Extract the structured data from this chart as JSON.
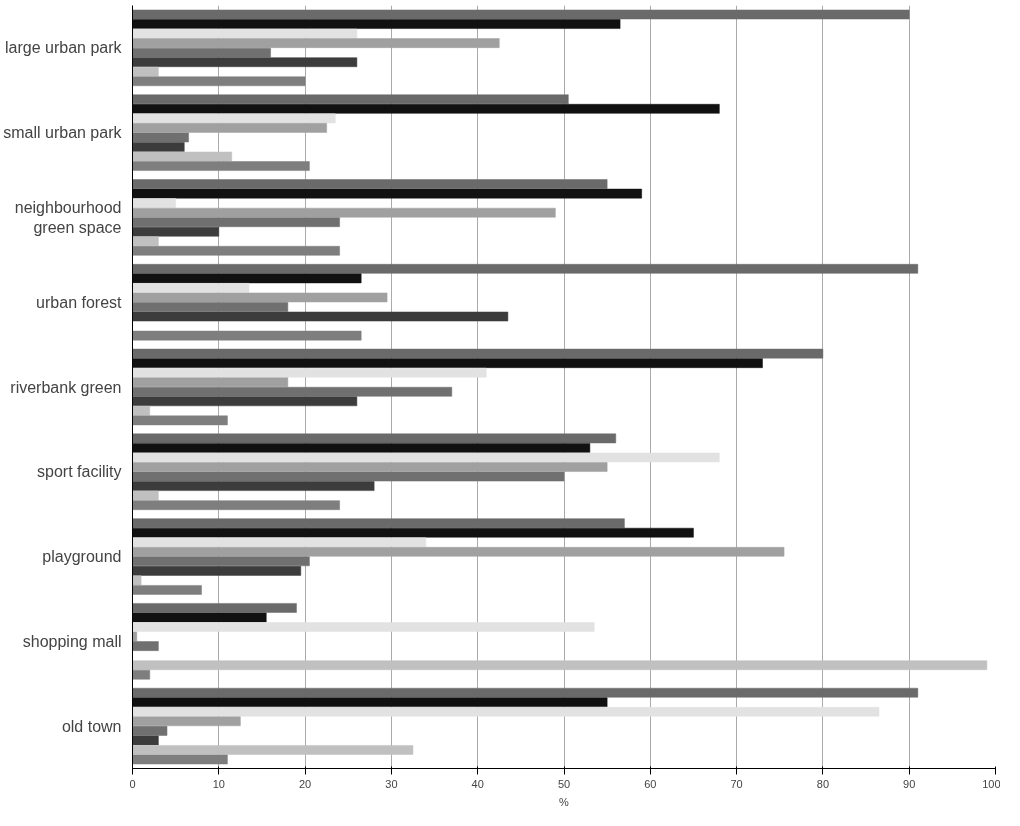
{
  "chart_data": {
    "type": "bar",
    "orientation": "horizontal",
    "xlabel": "%",
    "categories": [
      "large urban park",
      "small urban park",
      "neighbourhood green space",
      "urban forest",
      "riverbank green",
      "sport facility",
      "playground",
      "shopping mall",
      "old town"
    ],
    "series": [
      {
        "color": "#6a6a6a",
        "values": [
          90,
          50.5,
          55,
          91,
          80,
          56,
          57,
          19,
          91
        ]
      },
      {
        "color": "#111111",
        "values": [
          56.5,
          68,
          59,
          26.5,
          73,
          53,
          65,
          15.5,
          55
        ]
      },
      {
        "color": "#e2e2e2",
        "values": [
          26,
          23.5,
          5,
          13.5,
          41,
          68,
          34,
          53.5,
          86.5
        ]
      },
      {
        "color": "#a0a0a0",
        "values": [
          42.5,
          22.5,
          49,
          29.5,
          18,
          55,
          75.5,
          0.5,
          12.5
        ]
      },
      {
        "color": "#707070",
        "values": [
          16,
          6.5,
          24,
          18,
          37,
          50,
          20.5,
          3,
          4
        ]
      },
      {
        "color": "#3c3c3c",
        "values": [
          26,
          6,
          10,
          43.5,
          26,
          28,
          19.5,
          0,
          3
        ]
      },
      {
        "color": "#c0c0c0",
        "values": [
          3,
          11.5,
          3,
          0,
          2,
          3,
          1,
          99,
          32.5
        ]
      },
      {
        "color": "#7e7e7e",
        "values": [
          20,
          20.5,
          24,
          26.5,
          11,
          24,
          8,
          2,
          11
        ]
      }
    ],
    "xlim": [
      0,
      100
    ],
    "xticks": [
      0,
      10,
      20,
      30,
      40,
      50,
      60,
      70,
      80,
      90,
      100
    ],
    "grid": "x"
  }
}
